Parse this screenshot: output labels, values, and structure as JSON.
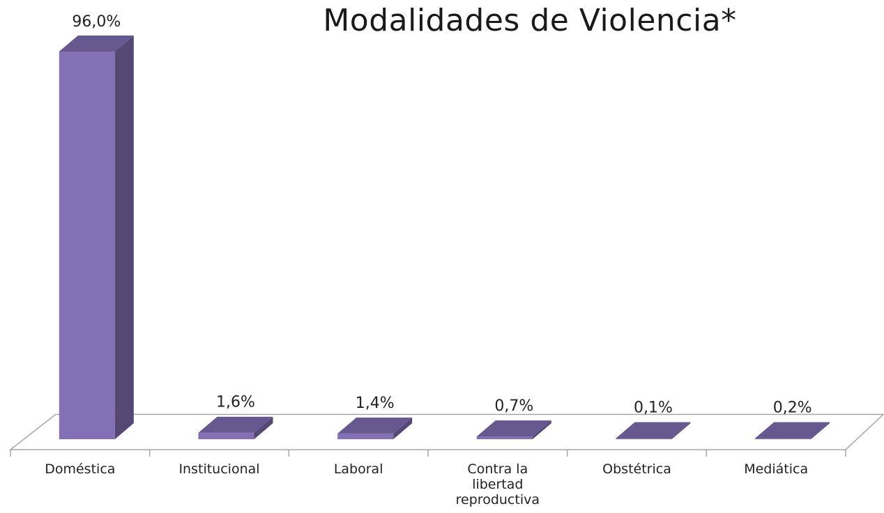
{
  "chart_data": {
    "type": "bar",
    "title": "Modalidades de Violencia*",
    "xlabel": "",
    "ylabel": "",
    "ylim": [
      0,
      100
    ],
    "grid": false,
    "legend": "none",
    "categories": [
      "Doméstica",
      "Institucional",
      "Laboral",
      "Contra la libertad reproductiva",
      "Obstétrica",
      "Mediática"
    ],
    "values": [
      96.0,
      1.6,
      1.4,
      0.7,
      0.1,
      0.2
    ],
    "value_labels": [
      "96,0%",
      "1,6%",
      "1,4%",
      "0,7%",
      "0,1%",
      "0,2%"
    ],
    "colors": {
      "front": "#8470b4",
      "side": "#554874",
      "top": "#67588f",
      "floor": "#a6a6a6"
    }
  }
}
